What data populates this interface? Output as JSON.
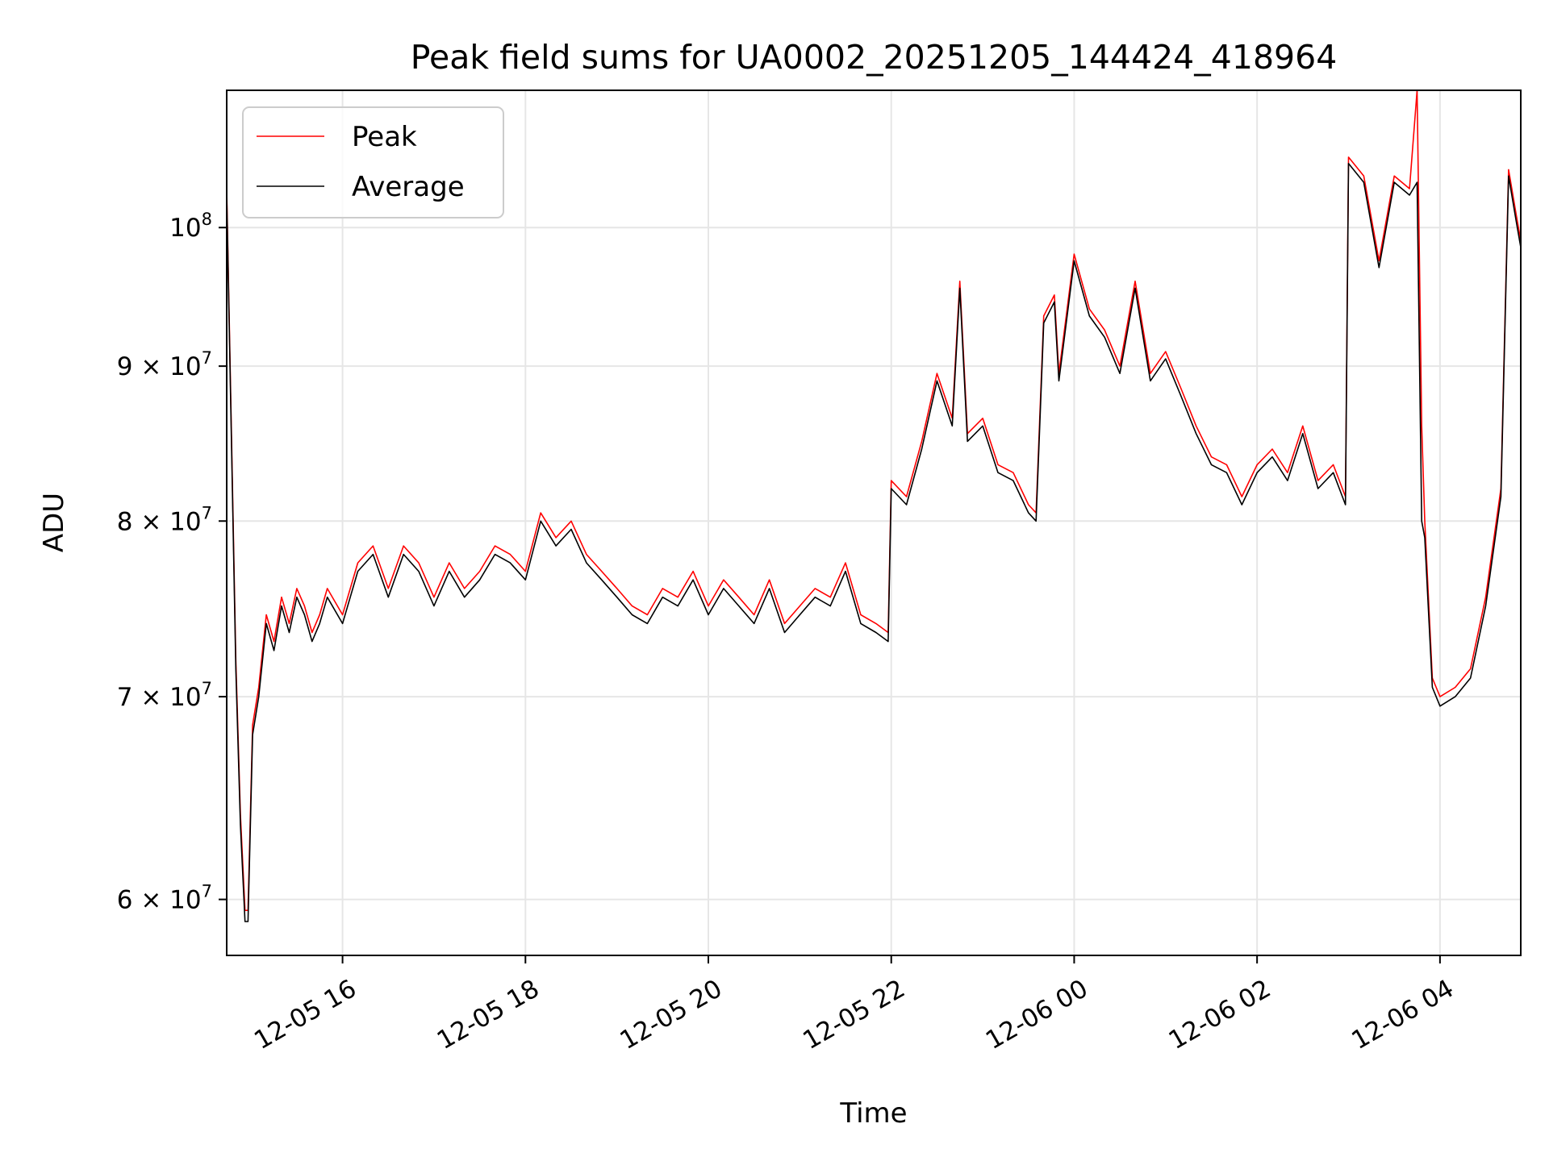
{
  "chart_data": {
    "type": "line",
    "title": "Peak field sums for UA0002_20251205_144424_418964",
    "xlabel": "Time",
    "ylabel": "ADU",
    "y_scale": "log",
    "xlim": [
      "2025-12-05 14:44",
      "2025-12-06 04:53"
    ],
    "ylim": [
      57500000,
      111000000
    ],
    "x_ticks": [
      {
        "value": "2025-12-05 16:00",
        "label": "12-05 16"
      },
      {
        "value": "2025-12-05 18:00",
        "label": "12-05 18"
      },
      {
        "value": "2025-12-05 20:00",
        "label": "12-05 20"
      },
      {
        "value": "2025-12-05 22:00",
        "label": "12-05 22"
      },
      {
        "value": "2025-12-06 00:00",
        "label": "12-06 00"
      },
      {
        "value": "2025-12-06 02:00",
        "label": "12-06 02"
      },
      {
        "value": "2025-12-06 04:00",
        "label": "12-06 04"
      }
    ],
    "y_ticks": [
      {
        "value": 60000000,
        "mant": "6",
        "exp": "7"
      },
      {
        "value": 70000000,
        "mant": "7",
        "exp": "7"
      },
      {
        "value": 80000000,
        "mant": "8",
        "exp": "7"
      },
      {
        "value": 90000000,
        "mant": "9",
        "exp": "7"
      },
      {
        "value": 100000000,
        "mant": "",
        "exp": "8"
      }
    ],
    "grid": true,
    "legend_position": "upper-left",
    "x": [
      "2025-12-05 14:44",
      "2025-12-05 14:47",
      "2025-12-05 14:50",
      "2025-12-05 14:53",
      "2025-12-05 14:56",
      "2025-12-05 14:58",
      "2025-12-05 15:01",
      "2025-12-05 15:05",
      "2025-12-05 15:10",
      "2025-12-05 15:15",
      "2025-12-05 15:20",
      "2025-12-05 15:25",
      "2025-12-05 15:30",
      "2025-12-05 15:35",
      "2025-12-05 15:40",
      "2025-12-05 15:45",
      "2025-12-05 15:50",
      "2025-12-05 16:00",
      "2025-12-05 16:10",
      "2025-12-05 16:20",
      "2025-12-05 16:30",
      "2025-12-05 16:40",
      "2025-12-05 16:50",
      "2025-12-05 17:00",
      "2025-12-05 17:10",
      "2025-12-05 17:20",
      "2025-12-05 17:30",
      "2025-12-05 17:40",
      "2025-12-05 17:50",
      "2025-12-05 18:00",
      "2025-12-05 18:10",
      "2025-12-05 18:20",
      "2025-12-05 18:30",
      "2025-12-05 18:40",
      "2025-12-05 18:50",
      "2025-12-05 19:00",
      "2025-12-05 19:10",
      "2025-12-05 19:20",
      "2025-12-05 19:30",
      "2025-12-05 19:40",
      "2025-12-05 19:50",
      "2025-12-05 20:00",
      "2025-12-05 20:10",
      "2025-12-05 20:20",
      "2025-12-05 20:30",
      "2025-12-05 20:40",
      "2025-12-05 20:50",
      "2025-12-05 21:00",
      "2025-12-05 21:10",
      "2025-12-05 21:20",
      "2025-12-05 21:30",
      "2025-12-05 21:40",
      "2025-12-05 21:50",
      "2025-12-05 21:58",
      "2025-12-05 22:00",
      "2025-12-05 22:10",
      "2025-12-05 22:20",
      "2025-12-05 22:30",
      "2025-12-05 22:40",
      "2025-12-05 22:45",
      "2025-12-05 22:50",
      "2025-12-05 23:00",
      "2025-12-05 23:10",
      "2025-12-05 23:20",
      "2025-12-05 23:30",
      "2025-12-05 23:35",
      "2025-12-05 23:40",
      "2025-12-05 23:47",
      "2025-12-05 23:50",
      "2025-12-06 00:00",
      "2025-12-06 00:10",
      "2025-12-06 00:20",
      "2025-12-06 00:30",
      "2025-12-06 00:40",
      "2025-12-06 00:50",
      "2025-12-06 01:00",
      "2025-12-06 01:10",
      "2025-12-06 01:20",
      "2025-12-06 01:30",
      "2025-12-06 01:40",
      "2025-12-06 01:50",
      "2025-12-06 02:00",
      "2025-12-06 02:10",
      "2025-12-06 02:20",
      "2025-12-06 02:30",
      "2025-12-06 02:40",
      "2025-12-06 02:50",
      "2025-12-06 02:58",
      "2025-12-06 03:00",
      "2025-12-06 03:10",
      "2025-12-06 03:20",
      "2025-12-06 03:30",
      "2025-12-06 03:40",
      "2025-12-06 03:45",
      "2025-12-06 03:48",
      "2025-12-06 03:50",
      "2025-12-06 03:55",
      "2025-12-06 04:00",
      "2025-12-06 04:10",
      "2025-12-06 04:20",
      "2025-12-06 04:30",
      "2025-12-06 04:40",
      "2025-12-06 04:45",
      "2025-12-06 04:50",
      "2025-12-06 04:53"
    ],
    "series": [
      {
        "name": "Peak",
        "color": "#ff0000",
        "values": [
          103000000,
          86000000,
          72000000,
          64000000,
          59500000,
          59500000,
          68500000,
          70500000,
          74500000,
          73000000,
          75500000,
          74000000,
          76000000,
          75000000,
          73500000,
          74500000,
          76000000,
          74500000,
          77500000,
          78500000,
          76000000,
          78500000,
          77500000,
          75500000,
          77500000,
          76000000,
          77000000,
          78500000,
          78000000,
          77000000,
          80500000,
          79000000,
          80000000,
          78000000,
          77000000,
          76000000,
          75000000,
          74500000,
          76000000,
          75500000,
          77000000,
          75000000,
          76500000,
          75500000,
          74500000,
          76500000,
          74000000,
          75000000,
          76000000,
          75500000,
          77500000,
          74500000,
          74000000,
          73500000,
          82500000,
          81500000,
          85000000,
          89500000,
          86500000,
          96000000,
          85500000,
          86500000,
          83500000,
          83000000,
          81000000,
          80500000,
          93500000,
          95000000,
          89500000,
          98000000,
          94000000,
          92500000,
          90000000,
          96000000,
          89500000,
          91000000,
          88500000,
          86000000,
          84000000,
          83500000,
          81500000,
          83500000,
          84500000,
          83000000,
          86000000,
          82500000,
          83500000,
          81500000,
          105500000,
          104000000,
          97500000,
          104000000,
          103000000,
          111000000,
          86000000,
          80000000,
          71000000,
          70000000,
          70500000,
          71500000,
          75500000,
          82000000,
          104500000,
          101000000,
          99000000
        ]
      },
      {
        "name": "Average",
        "color": "#000000",
        "values": [
          102500000,
          85500000,
          71500000,
          63500000,
          59000000,
          59000000,
          68000000,
          70000000,
          74000000,
          72500000,
          75000000,
          73500000,
          75500000,
          74500000,
          73000000,
          74000000,
          75500000,
          74000000,
          77000000,
          78000000,
          75500000,
          78000000,
          77000000,
          75000000,
          77000000,
          75500000,
          76500000,
          78000000,
          77500000,
          76500000,
          80000000,
          78500000,
          79500000,
          77500000,
          76500000,
          75500000,
          74500000,
          74000000,
          75500000,
          75000000,
          76500000,
          74500000,
          76000000,
          75000000,
          74000000,
          76000000,
          73500000,
          74500000,
          75500000,
          75000000,
          77000000,
          74000000,
          73500000,
          73000000,
          82000000,
          81000000,
          84500000,
          89000000,
          86000000,
          95500000,
          85000000,
          86000000,
          83000000,
          82500000,
          80500000,
          80000000,
          93000000,
          94500000,
          89000000,
          97500000,
          93500000,
          92000000,
          89500000,
          95500000,
          89000000,
          90500000,
          88000000,
          85500000,
          83500000,
          83000000,
          81000000,
          83000000,
          84000000,
          82500000,
          85500000,
          82000000,
          83000000,
          81000000,
          105000000,
          103500000,
          97000000,
          103500000,
          102500000,
          103500000,
          80000000,
          79000000,
          70500000,
          69500000,
          70000000,
          71000000,
          75000000,
          81500000,
          104000000,
          100500000,
          98500000
        ]
      }
    ]
  }
}
